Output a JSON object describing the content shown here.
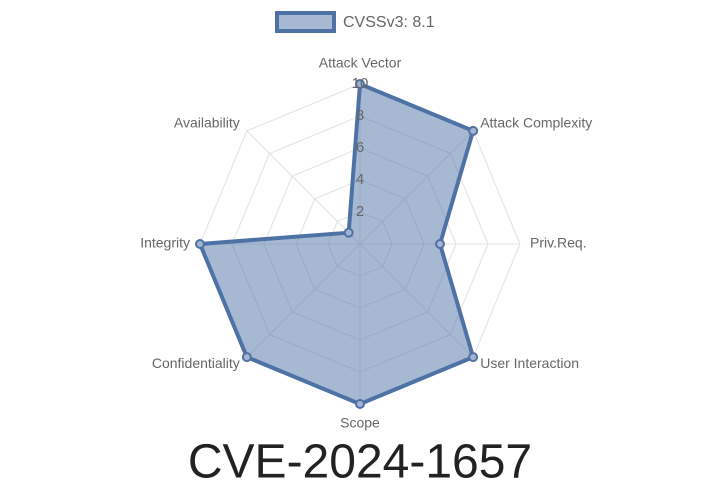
{
  "chart_data": {
    "type": "radar",
    "title": "CVE-2024-1657",
    "categories": [
      "Attack Vector",
      "Attack Complexity",
      "Priv.Req.",
      "User Interaction",
      "Scope",
      "Confidentiality",
      "Integrity",
      "Availability"
    ],
    "series": [
      {
        "name": "CVSSv3: 8.1",
        "color": "#4e72a6",
        "values": [
          10,
          10,
          5,
          10,
          10,
          10,
          10,
          1
        ]
      }
    ],
    "ylim": [
      0,
      10
    ],
    "yticks": [
      2,
      4,
      6,
      8,
      10
    ],
    "grid": true
  }
}
